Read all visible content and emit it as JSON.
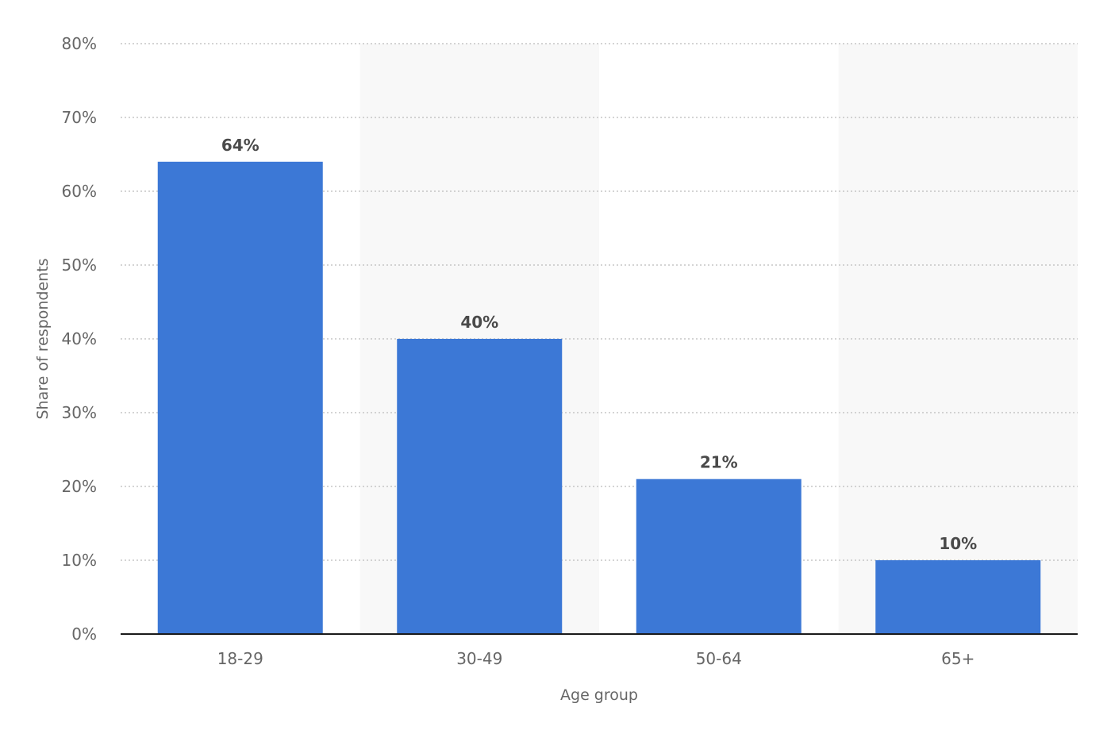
{
  "chart_data": {
    "type": "bar",
    "title": "",
    "xlabel": "Age group",
    "ylabel": "Share of respondents",
    "categories": [
      "18-29",
      "30-49",
      "50-64",
      "65+"
    ],
    "values": [
      64,
      40,
      21,
      10
    ],
    "value_labels": [
      "64%",
      "40%",
      "21%",
      "10%"
    ],
    "ylim": [
      0,
      80
    ],
    "yticks": [
      0,
      10,
      20,
      30,
      40,
      50,
      60,
      70,
      80
    ],
    "ytick_labels": [
      "0%",
      "10%",
      "20%",
      "30%",
      "40%",
      "50%",
      "60%",
      "70%",
      "80%"
    ],
    "grid": true,
    "grid_style": "dotted",
    "alternating_band_shading": true,
    "legend": "none",
    "colors": {
      "bar": "#3c78d6",
      "band": "#f8f8f8",
      "grid": "#bbbbbb",
      "axis": "#1a1a1a"
    }
  }
}
